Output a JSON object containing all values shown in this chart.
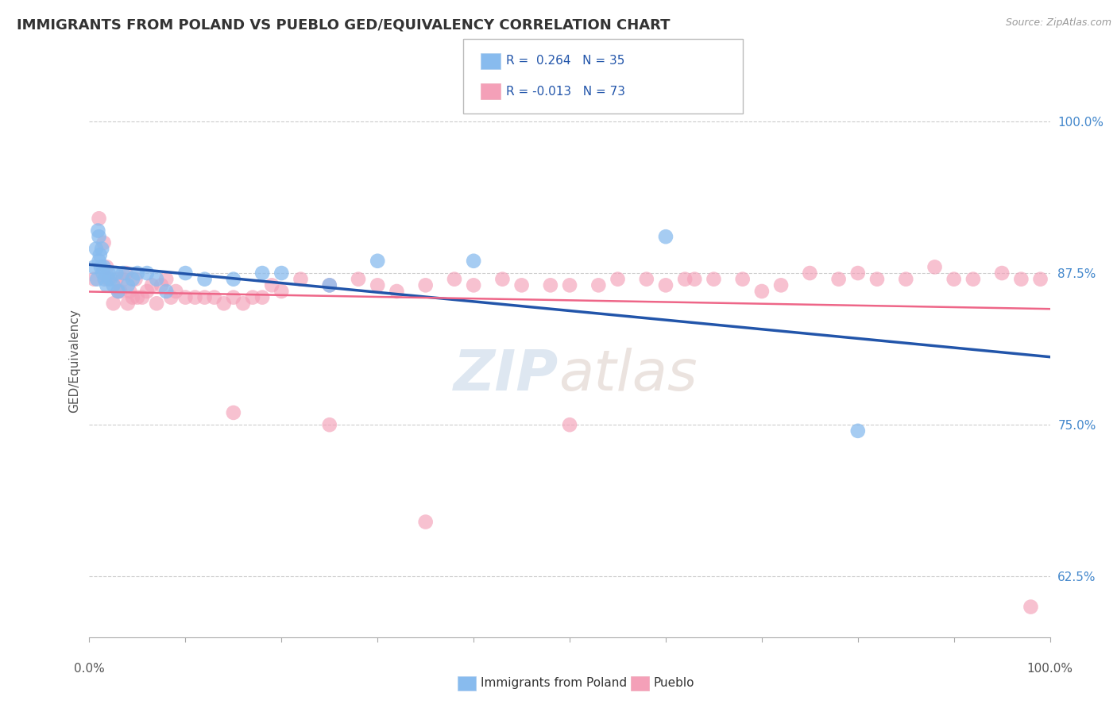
{
  "title": "IMMIGRANTS FROM POLAND VS PUEBLO GED/EQUIVALENCY CORRELATION CHART",
  "source": "Source: ZipAtlas.com",
  "ylabel": "GED/Equivalency",
  "ytick_labels": [
    "62.5%",
    "75.0%",
    "87.5%",
    "100.0%"
  ],
  "ytick_values": [
    0.625,
    0.75,
    0.875,
    1.0
  ],
  "xlim": [
    0.0,
    1.0
  ],
  "ylim": [
    0.575,
    1.03
  ],
  "legend_label_blue": "Immigrants from Poland",
  "legend_label_pink": "Pueblo",
  "background_color": "#ffffff",
  "grid_color": "#cccccc",
  "title_color": "#333333",
  "source_color": "#999999",
  "blue_scatter_color": "#88bbee",
  "pink_scatter_color": "#f4a0b8",
  "blue_line_color": "#2255aa",
  "pink_line_color": "#ee6688",
  "right_tick_color": "#4488cc",
  "blue_R": 0.264,
  "pink_R": -0.013,
  "blue_N": 35,
  "pink_N": 73,
  "blue_points_x": [
    0.005,
    0.007,
    0.008,
    0.009,
    0.01,
    0.01,
    0.011,
    0.012,
    0.013,
    0.014,
    0.015,
    0.016,
    0.018,
    0.02,
    0.022,
    0.025,
    0.028,
    0.03,
    0.035,
    0.04,
    0.045,
    0.05,
    0.06,
    0.07,
    0.08,
    0.1,
    0.12,
    0.15,
    0.18,
    0.2,
    0.25,
    0.3,
    0.4,
    0.6,
    0.8
  ],
  "blue_points_y": [
    0.88,
    0.895,
    0.87,
    0.91,
    0.885,
    0.905,
    0.89,
    0.88,
    0.895,
    0.875,
    0.88,
    0.87,
    0.865,
    0.875,
    0.87,
    0.865,
    0.875,
    0.86,
    0.875,
    0.865,
    0.87,
    0.875,
    0.875,
    0.87,
    0.86,
    0.875,
    0.87,
    0.87,
    0.875,
    0.875,
    0.865,
    0.885,
    0.885,
    0.905,
    0.745
  ],
  "pink_points_x": [
    0.005,
    0.01,
    0.015,
    0.018,
    0.02,
    0.025,
    0.028,
    0.03,
    0.032,
    0.035,
    0.038,
    0.04,
    0.042,
    0.045,
    0.048,
    0.05,
    0.055,
    0.06,
    0.065,
    0.07,
    0.075,
    0.08,
    0.085,
    0.09,
    0.1,
    0.11,
    0.12,
    0.13,
    0.14,
    0.15,
    0.16,
    0.17,
    0.18,
    0.19,
    0.2,
    0.22,
    0.25,
    0.28,
    0.3,
    0.32,
    0.35,
    0.38,
    0.4,
    0.43,
    0.45,
    0.48,
    0.5,
    0.53,
    0.55,
    0.58,
    0.6,
    0.62,
    0.63,
    0.65,
    0.68,
    0.7,
    0.72,
    0.75,
    0.78,
    0.8,
    0.82,
    0.85,
    0.88,
    0.9,
    0.92,
    0.95,
    0.97,
    0.99,
    0.15,
    0.25,
    0.35,
    0.5,
    0.98
  ],
  "pink_points_y": [
    0.87,
    0.92,
    0.9,
    0.88,
    0.87,
    0.85,
    0.87,
    0.86,
    0.86,
    0.87,
    0.875,
    0.85,
    0.86,
    0.855,
    0.87,
    0.855,
    0.855,
    0.86,
    0.865,
    0.85,
    0.865,
    0.87,
    0.855,
    0.86,
    0.855,
    0.855,
    0.855,
    0.855,
    0.85,
    0.855,
    0.85,
    0.855,
    0.855,
    0.865,
    0.86,
    0.87,
    0.865,
    0.87,
    0.865,
    0.86,
    0.865,
    0.87,
    0.865,
    0.87,
    0.865,
    0.865,
    0.865,
    0.865,
    0.87,
    0.87,
    0.865,
    0.87,
    0.87,
    0.87,
    0.87,
    0.86,
    0.865,
    0.875,
    0.87,
    0.875,
    0.87,
    0.87,
    0.88,
    0.87,
    0.87,
    0.875,
    0.87,
    0.87,
    0.76,
    0.75,
    0.67,
    0.75,
    0.6
  ]
}
